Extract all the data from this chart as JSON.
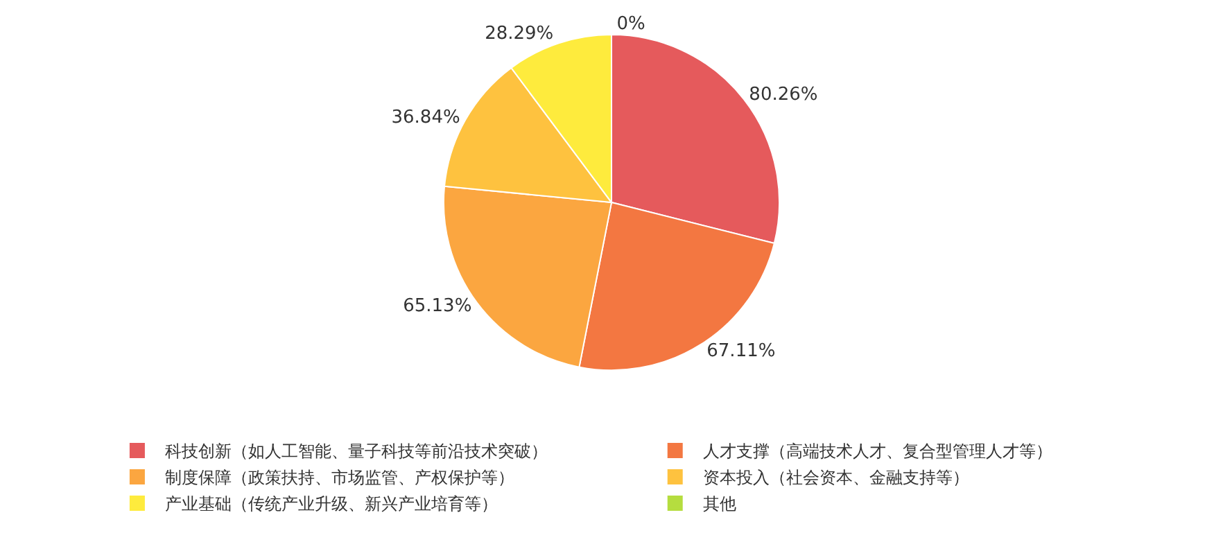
{
  "chart_data": {
    "type": "pie",
    "categories": [
      "科技创新（如人工智能、量子科技等前沿技术突破）",
      "人才支撑（高端技术人才、复合型管理人才等）",
      "制度保障（政策扶持、市场监管、产权保护等）",
      "资本投入（社会资本、金融支持等）",
      "产业基础（传统产业升级、新兴产业培育等）",
      "其他"
    ],
    "values": [
      80.26,
      67.11,
      65.13,
      36.84,
      28.29,
      0
    ],
    "colors": [
      "#e55a5c",
      "#f37741",
      "#fba640",
      "#fec23f",
      "#feeb3d",
      "#b5dd3f"
    ],
    "value_labels": [
      "80.26%",
      "67.11%",
      "65.13%",
      "36.84%",
      "28.29%",
      "0%"
    ],
    "legend": "bottom"
  }
}
